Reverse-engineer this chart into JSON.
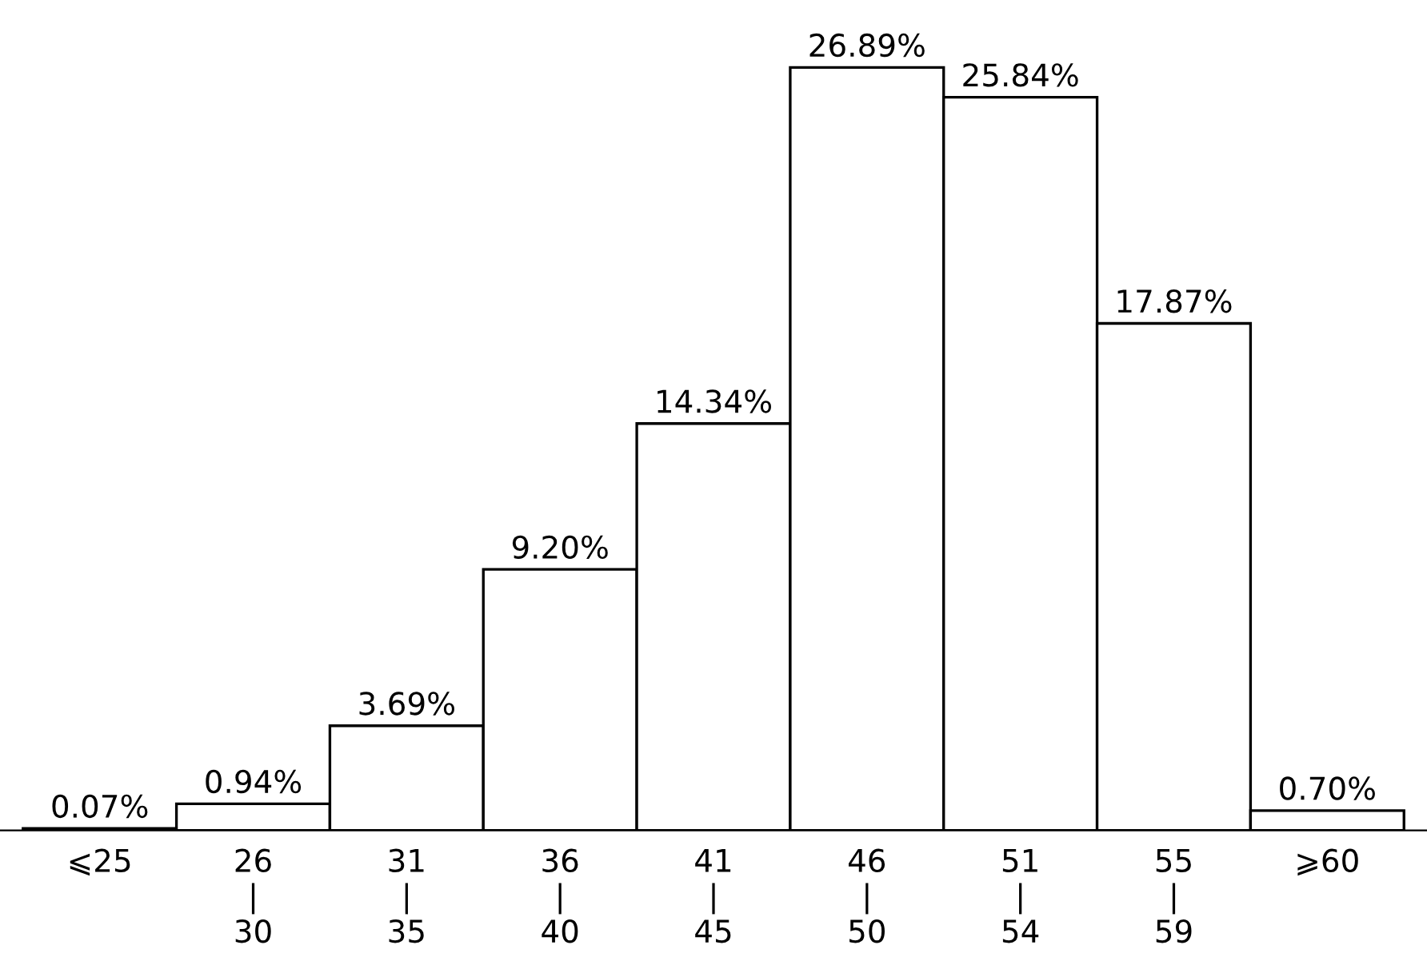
{
  "chart_data": {
    "type": "bar",
    "categories": [
      "⩽25",
      "26\n|\n30",
      "31\n|\n35",
      "36\n|\n40",
      "41\n|\n45",
      "46\n|\n50",
      "51\n|\n54",
      "55\n|\n59",
      "⩾60"
    ],
    "values": [
      0.07,
      0.94,
      3.69,
      9.2,
      14.34,
      26.89,
      25.84,
      17.87,
      0.7
    ],
    "value_labels": [
      "0.07%",
      "0.94%",
      "3.69%",
      "9.20%",
      "14.34%",
      "26.89%",
      "25.84%",
      "17.87%",
      "0.70%"
    ],
    "color": "#ffffff",
    "grid": false,
    "legend": false
  }
}
